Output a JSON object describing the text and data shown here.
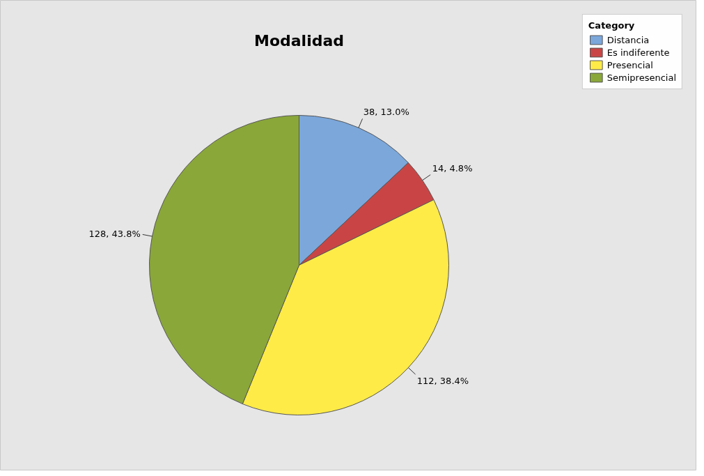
{
  "chart_data": {
    "type": "pie",
    "title": "Modalidad",
    "legend_title": "Category",
    "legend": "top right",
    "categories": [
      "Distancia",
      "Es indiferente",
      "Presencial",
      "Semipresencial"
    ],
    "values": [
      38,
      14,
      112,
      128
    ],
    "colors": [
      "#7ba7db",
      "#c94545",
      "#ffeb47",
      "#8aa73a"
    ],
    "value_labels": [
      "38, 13.0%",
      "14, 4.8%",
      "112, 38.4%",
      "128, 43.8%"
    ]
  }
}
